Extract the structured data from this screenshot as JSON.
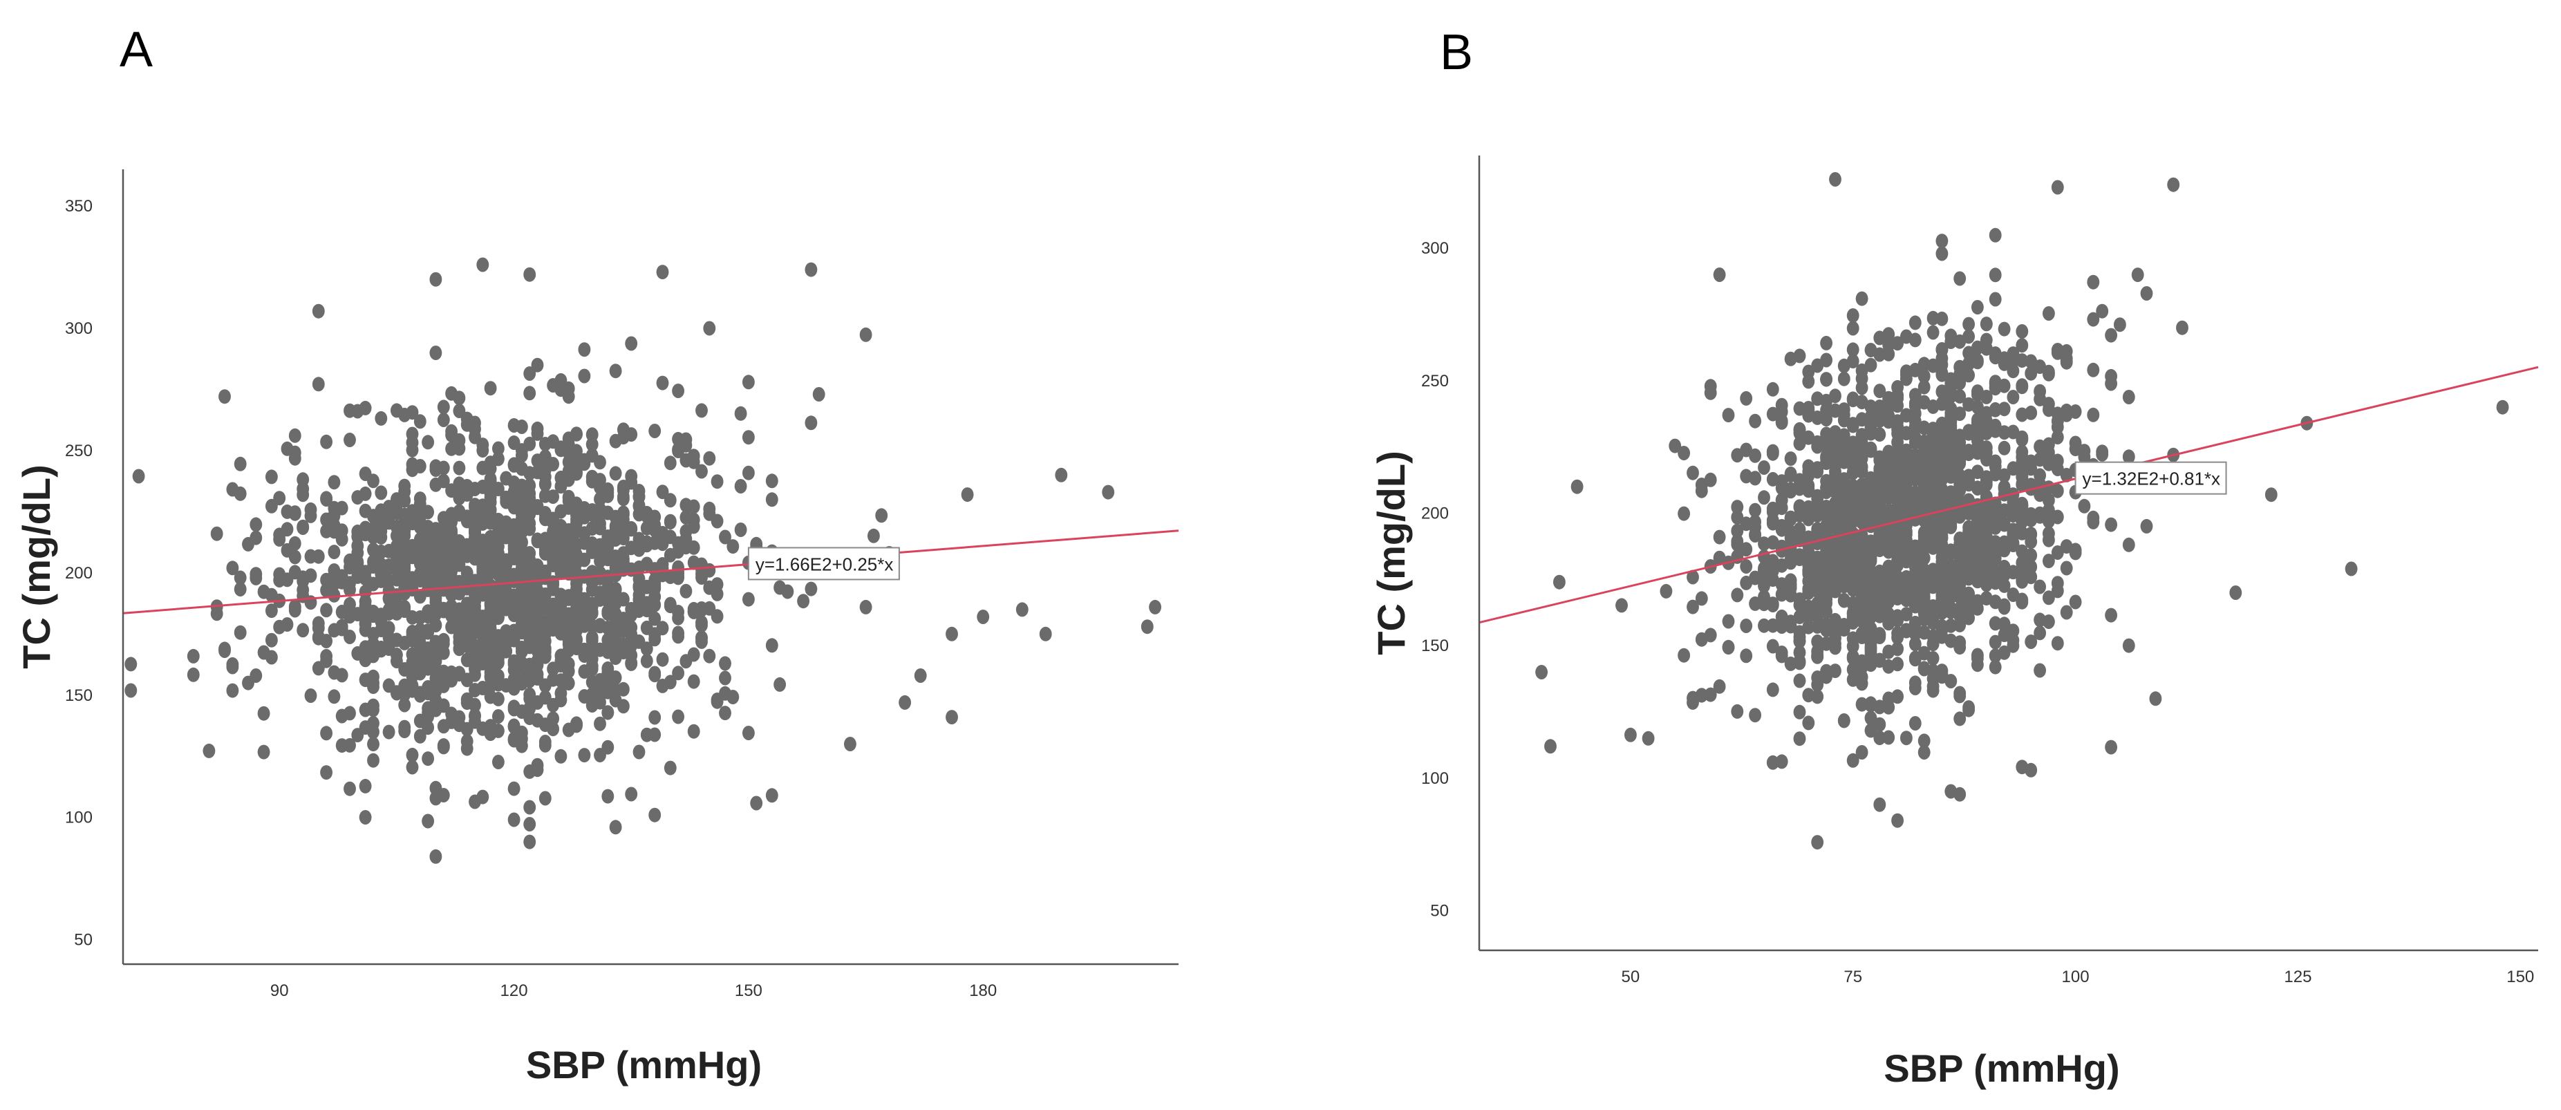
{
  "figure": {
    "background": "#ffffff",
    "dot_color": "#6b6b6b",
    "fit_color": "#d9435e"
  },
  "chart_data": [
    {
      "panel": "A",
      "type": "scatter",
      "xlabel": "SBP (mmHg)",
      "ylabel": "TC (mg/dL)",
      "xlim": [
        70,
        205
      ],
      "ylim": [
        40,
        365
      ],
      "xticks": [
        90,
        120,
        150,
        180
      ],
      "yticks": [
        50,
        100,
        150,
        200,
        250,
        300,
        350
      ],
      "n_points": 1500,
      "point_cloud": {
        "x_mean": 119,
        "x_sd": 14,
        "y_mean": 196,
        "y_sd": 36
      },
      "fit": {
        "equation": "y=1.66E2+0.25*x",
        "intercept": 166,
        "slope": 0.25,
        "label_x": 150
      },
      "outliers": [
        {
          "x": 190,
          "y": 240
        },
        {
          "x": 196,
          "y": 233
        },
        {
          "x": 178,
          "y": 232
        },
        {
          "x": 185,
          "y": 185
        },
        {
          "x": 180,
          "y": 182
        },
        {
          "x": 188,
          "y": 175
        },
        {
          "x": 176,
          "y": 175
        },
        {
          "x": 202,
          "y": 186
        },
        {
          "x": 201,
          "y": 178
        },
        {
          "x": 172,
          "y": 158
        },
        {
          "x": 176,
          "y": 141
        },
        {
          "x": 170,
          "y": 147
        },
        {
          "x": 163,
          "y": 130
        },
        {
          "x": 168,
          "y": 208
        },
        {
          "x": 165,
          "y": 186
        },
        {
          "x": 158,
          "y": 324
        },
        {
          "x": 159,
          "y": 273
        },
        {
          "x": 110,
          "y": 84
        },
        {
          "x": 122,
          "y": 90
        },
        {
          "x": 133,
          "y": 96
        },
        {
          "x": 138,
          "y": 101
        },
        {
          "x": 85,
          "y": 198
        },
        {
          "x": 86,
          "y": 155
        },
        {
          "x": 87,
          "y": 158
        },
        {
          "x": 153,
          "y": 109
        },
        {
          "x": 116,
          "y": 326
        },
        {
          "x": 122,
          "y": 322
        },
        {
          "x": 139,
          "y": 323
        },
        {
          "x": 110,
          "y": 320
        },
        {
          "x": 95,
          "y": 307
        },
        {
          "x": 145,
          "y": 300
        }
      ]
    },
    {
      "panel": "B",
      "type": "scatter",
      "xlabel": "SBP (mmHg)",
      "ylabel": "TC (mg/dL)",
      "xlim": [
        33,
        152
      ],
      "ylim": [
        35,
        335
      ],
      "xticks": [
        50,
        75,
        100,
        125,
        150
      ],
      "yticks": [
        50,
        100,
        150,
        200,
        250,
        300
      ],
      "n_points": 1500,
      "point_cloud": {
        "x_mean": 81,
        "x_sd": 9.5,
        "y_mean": 199,
        "y_sd": 36
      },
      "fit": {
        "equation": "y=1.32E2+0.81*x",
        "intercept": 132,
        "slope": 0.81,
        "label_x": 100
      },
      "outliers": [
        {
          "x": 148,
          "y": 240
        },
        {
          "x": 126,
          "y": 234
        },
        {
          "x": 122,
          "y": 207
        },
        {
          "x": 131,
          "y": 179
        },
        {
          "x": 118,
          "y": 170
        },
        {
          "x": 111,
          "y": 324
        },
        {
          "x": 112,
          "y": 270
        },
        {
          "x": 109,
          "y": 130
        },
        {
          "x": 111,
          "y": 222
        },
        {
          "x": 40,
          "y": 140
        },
        {
          "x": 41,
          "y": 112
        },
        {
          "x": 42,
          "y": 174
        },
        {
          "x": 44,
          "y": 210
        },
        {
          "x": 60,
          "y": 290
        },
        {
          "x": 80,
          "y": 84
        },
        {
          "x": 78,
          "y": 90
        },
        {
          "x": 73,
          "y": 326
        },
        {
          "x": 98,
          "y": 323
        },
        {
          "x": 86,
          "y": 95
        },
        {
          "x": 95,
          "y": 103
        },
        {
          "x": 52,
          "y": 115
        }
      ]
    }
  ]
}
